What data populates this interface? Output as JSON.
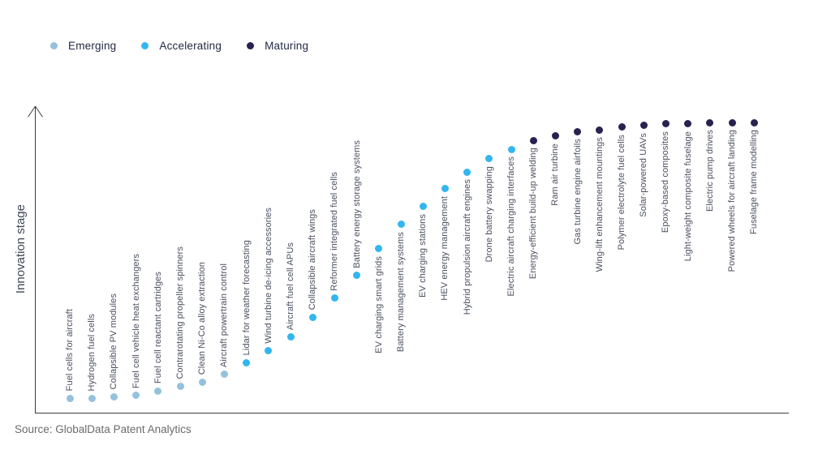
{
  "legend": [
    {
      "label": "Emerging",
      "color": "#95c1dc"
    },
    {
      "label": "Accelerating",
      "color": "#33b6f0"
    },
    {
      "label": "Maturing",
      "color": "#2a2150"
    }
  ],
  "axis": {
    "y_label": "Innovation stage"
  },
  "source": "Source: GlobalData Patent Analytics",
  "chart_data": {
    "type": "scatter",
    "title": "",
    "xlabel": "",
    "ylabel": "Innovation stage",
    "ylim": [
      0,
      100
    ],
    "grid": false,
    "legend_position": "top-left",
    "note": "S-curve of technologies ordered left-to-right by innovation stage; y value is relative stage (0-100) estimated from pixel position, no numeric axis shown",
    "points": [
      {
        "label": "Fuel cells for aircraft",
        "stage": "Emerging",
        "value": 5,
        "label_side": "above"
      },
      {
        "label": "Hydrogen fuel cells",
        "stage": "Emerging",
        "value": 5,
        "label_side": "above"
      },
      {
        "label": "Collapsible PV modules",
        "stage": "Emerging",
        "value": 5.5,
        "label_side": "above"
      },
      {
        "label": "Fuel cell vehicle heat exchangers",
        "stage": "Emerging",
        "value": 6,
        "label_side": "above"
      },
      {
        "label": "Fuel cell reactant cartridges",
        "stage": "Emerging",
        "value": 7.5,
        "label_side": "above"
      },
      {
        "label": "Contrarotating propeller spinners",
        "stage": "Emerging",
        "value": 9,
        "label_side": "above"
      },
      {
        "label": "Clean Ni-Co alloy extraction",
        "stage": "Emerging",
        "value": 10.5,
        "label_side": "above"
      },
      {
        "label": "Aircraft powertrain control",
        "stage": "Emerging",
        "value": 13,
        "label_side": "above"
      },
      {
        "label": "Lidar for weather forecasting",
        "stage": "Accelerating",
        "value": 17,
        "label_side": "above"
      },
      {
        "label": "Wind turbine de-icing accessories",
        "stage": "Accelerating",
        "value": 21,
        "label_side": "above"
      },
      {
        "label": "Aircraft fuel cell APUs",
        "stage": "Accelerating",
        "value": 25.5,
        "label_side": "above"
      },
      {
        "label": "Collapsible aircraft wings",
        "stage": "Accelerating",
        "value": 32,
        "label_side": "above"
      },
      {
        "label": "Reformer integrated fuel cells",
        "stage": "Accelerating",
        "value": 38.5,
        "label_side": "above"
      },
      {
        "label": "Battery energy storage systems",
        "stage": "Accelerating",
        "value": 46,
        "label_side": "above"
      },
      {
        "label": "EV charging smart grids",
        "stage": "Accelerating",
        "value": 55,
        "label_side": "below"
      },
      {
        "label": "Battery management systems",
        "stage": "Accelerating",
        "value": 63,
        "label_side": "below"
      },
      {
        "label": "EV charging stations",
        "stage": "Accelerating",
        "value": 69,
        "label_side": "below"
      },
      {
        "label": "HEV energy management",
        "stage": "Accelerating",
        "value": 75,
        "label_side": "below"
      },
      {
        "label": "Hybrid propulsion aircraft engines",
        "stage": "Accelerating",
        "value": 80.5,
        "label_side": "below"
      },
      {
        "label": "Drone battery swapping",
        "stage": "Accelerating",
        "value": 85,
        "label_side": "below"
      },
      {
        "label": "Electric aircraft charging interfaces",
        "stage": "Accelerating",
        "value": 88,
        "label_side": "below"
      },
      {
        "label": "Energy-efficient build-up welding",
        "stage": "Maturing",
        "value": 91,
        "label_side": "below"
      },
      {
        "label": "Ram air turbine",
        "stage": "Maturing",
        "value": 92.5,
        "label_side": "below"
      },
      {
        "label": "Gas turbine engine airfoils",
        "stage": "Maturing",
        "value": 94,
        "label_side": "below"
      },
      {
        "label": "Wing-lift enhancement mountings",
        "stage": "Maturing",
        "value": 94.5,
        "label_side": "below"
      },
      {
        "label": "Polymer electrolyte fuel cells",
        "stage": "Maturing",
        "value": 95.5,
        "label_side": "below"
      },
      {
        "label": "Solar-powered UAVs",
        "stage": "Maturing",
        "value": 96,
        "label_side": "below"
      },
      {
        "label": "Epoxy-based composites",
        "stage": "Maturing",
        "value": 96.5,
        "label_side": "below"
      },
      {
        "label": "Light-weight composite fuselage",
        "stage": "Maturing",
        "value": 96.5,
        "label_side": "below"
      },
      {
        "label": "Electric pump drives",
        "stage": "Maturing",
        "value": 97,
        "label_side": "below"
      },
      {
        "label": "Powered wheels for aircraft landing",
        "stage": "Maturing",
        "value": 97,
        "label_side": "below"
      },
      {
        "label": "Fuselage frame modelling",
        "stage": "Maturing",
        "value": 97,
        "label_side": "below"
      }
    ]
  }
}
